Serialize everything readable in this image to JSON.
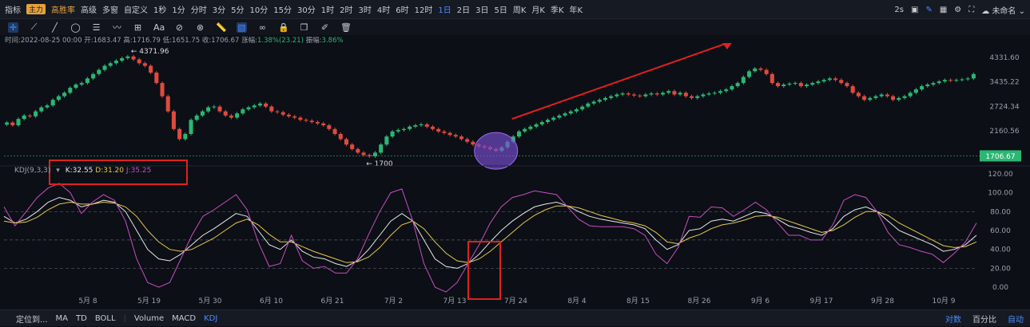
{
  "topbar": {
    "items": [
      "指标",
      "主力",
      "高胜率",
      "高级",
      "多窗",
      "自定义",
      "1秒",
      "1分",
      "分时",
      "3分",
      "5分",
      "10分",
      "15分",
      "30分",
      "1时",
      "2时",
      "3时",
      "4时",
      "6时",
      "12时",
      "1日",
      "2日",
      "3日",
      "5日",
      "周K",
      "月K",
      "季K",
      "年K"
    ],
    "active": "1日",
    "right_label": "2s",
    "account": "未命名"
  },
  "ohlc": {
    "time_label": "时间:",
    "time": "2022-08-25 00:00",
    "open_label": "开:",
    "open": "1683.47",
    "high_label": "高:",
    "high": "1716.79",
    "low_label": "低:",
    "low": "1651.75",
    "close_label": "收:",
    "close": "1706.67",
    "change_label": "涨幅:",
    "change": "1.38%(23.21)",
    "amp_label": "振幅:",
    "amp": "3.86%"
  },
  "kdj_legend": {
    "name": "KDJ(9,3,3)",
    "k": "K:32.55",
    "d": "D:31.20",
    "j": "J:35.25"
  },
  "bottombar": {
    "locate": "定位到...",
    "items": [
      "MA",
      "TD",
      "BOLL",
      "Volume",
      "MACD",
      "KDJ"
    ],
    "active": "KDJ",
    "right": [
      "对数",
      "百分比",
      "自动"
    ]
  },
  "colors": {
    "up": "#2bb673",
    "down": "#e04a3e",
    "k": "#e8e8e8",
    "d": "#e6c84a",
    "j": "#c64fbf",
    "accent": "#4a8cff",
    "annotation": "#e02020",
    "highlight": "#7a4fd6"
  },
  "chart_data": [
    {
      "type": "candlestick",
      "y_ticks": [
        4331.6,
        3435.22,
        2724.34,
        2160.56
      ],
      "y_scale": "log",
      "ylim": [
        1600,
        4600
      ],
      "current_price": "1706.67",
      "annotations": [
        "4371.96",
        "1700"
      ],
      "x_ticks": [
        "5月 8",
        "5月 19",
        "5月 30",
        "6月 10",
        "6月 21",
        "7月 2",
        "7月 13",
        "7月 24",
        "8月 4",
        "8月 15",
        "8月 26",
        "9月 6",
        "9月 17",
        "9月 28",
        "10月 9"
      ],
      "close": [
        2340,
        2280,
        2420,
        2500,
        2480,
        2600,
        2700,
        2750,
        2900,
        3000,
        3100,
        3250,
        3350,
        3400,
        3550,
        3700,
        3850,
        4000,
        4100,
        4200,
        4300,
        4371,
        4250,
        4100,
        4000,
        3750,
        3400,
        3000,
        2600,
        2200,
        2000,
        2100,
        2400,
        2500,
        2600,
        2700,
        2720,
        2600,
        2500,
        2450,
        2550,
        2650,
        2700,
        2750,
        2800,
        2720,
        2600,
        2580,
        2520,
        2480,
        2450,
        2400,
        2380,
        2350,
        2320,
        2280,
        2200,
        2100,
        2000,
        1900,
        1820,
        1760,
        1720,
        1700,
        1760,
        1900,
        2050,
        2150,
        2180,
        2200,
        2250,
        2280,
        2300,
        2250,
        2200,
        2150,
        2120,
        2080,
        2050,
        2000,
        1950,
        1900,
        1870,
        1850,
        1820,
        1790,
        1850,
        1950,
        2050,
        2150,
        2200,
        2250,
        2300,
        2350,
        2400,
        2450,
        2500,
        2550,
        2600,
        2650,
        2720,
        2800,
        2850,
        2900,
        2950,
        3000,
        3050,
        3080,
        3050,
        3020,
        3000,
        3050,
        3080,
        3050,
        3100,
        3150,
        3050,
        3100,
        3000,
        2950,
        3000,
        3050,
        3080,
        3100,
        3150,
        3200,
        3300,
        3400,
        3600,
        3800,
        3900,
        3850,
        3700,
        3400,
        3300,
        3350,
        3380,
        3400,
        3300,
        3350,
        3400,
        3450,
        3500,
        3550,
        3500,
        3400,
        3300,
        3100,
        3000,
        2900,
        2950,
        3000,
        3050,
        3000,
        2900,
        2950,
        3000,
        3100,
        3200,
        3300,
        3350,
        3400,
        3450,
        3500,
        3480,
        3500,
        3520,
        3550,
        3700
      ]
    },
    {
      "type": "line",
      "title": "KDJ(9,3,3)",
      "y_ticks": [
        120,
        100,
        80,
        60,
        40,
        20,
        0
      ],
      "ylim": [
        -10,
        125
      ],
      "dashed_levels": [
        80,
        50,
        20
      ],
      "series": [
        {
          "name": "K",
          "values": [
            75,
            68,
            72,
            80,
            90,
            95,
            92,
            85,
            88,
            92,
            90,
            80,
            60,
            40,
            30,
            28,
            35,
            45,
            55,
            62,
            70,
            78,
            75,
            60,
            45,
            40,
            50,
            38,
            32,
            30,
            25,
            22,
            28,
            40,
            55,
            70,
            78,
            70,
            50,
            30,
            22,
            20,
            25,
            35,
            48,
            60,
            70,
            78,
            85,
            88,
            90,
            86,
            80,
            75,
            72,
            70,
            68,
            66,
            62,
            50,
            40,
            45,
            60,
            62,
            70,
            72,
            70,
            75,
            80,
            78,
            72,
            65,
            62,
            58,
            55,
            62,
            75,
            82,
            85,
            80,
            70,
            60,
            55,
            50,
            45,
            38,
            40,
            45,
            55
          ]
        },
        {
          "name": "D",
          "values": [
            70,
            68,
            69,
            74,
            82,
            88,
            90,
            88,
            88,
            90,
            89,
            85,
            75,
            60,
            48,
            40,
            38,
            40,
            46,
            52,
            60,
            68,
            72,
            66,
            56,
            48,
            48,
            43,
            38,
            34,
            30,
            26,
            27,
            32,
            42,
            55,
            66,
            70,
            62,
            48,
            36,
            28,
            26,
            30,
            38,
            48,
            58,
            68,
            76,
            82,
            86,
            86,
            84,
            80,
            76,
            73,
            70,
            68,
            65,
            58,
            48,
            46,
            52,
            56,
            62,
            66,
            68,
            71,
            75,
            76,
            74,
            70,
            66,
            62,
            58,
            60,
            66,
            74,
            80,
            80,
            76,
            68,
            62,
            56,
            50,
            44,
            42,
            43,
            48
          ]
        },
        {
          "name": "J",
          "values": [
            85,
            65,
            80,
            95,
            105,
            110,
            100,
            78,
            90,
            98,
            92,
            70,
            30,
            5,
            0,
            5,
            30,
            55,
            75,
            82,
            90,
            98,
            82,
            48,
            22,
            25,
            55,
            28,
            20,
            22,
            15,
            15,
            30,
            56,
            80,
            100,
            104,
            70,
            25,
            0,
            -5,
            5,
            25,
            45,
            68,
            85,
            95,
            98,
            102,
            100,
            98,
            85,
            72,
            65,
            64,
            64,
            64,
            62,
            55,
            35,
            25,
            42,
            75,
            74,
            85,
            84,
            75,
            82,
            90,
            82,
            68,
            55,
            55,
            50,
            50,
            66,
            92,
            98,
            95,
            80,
            58,
            45,
            42,
            38,
            35,
            26,
            36,
            48,
            68
          ]
        }
      ]
    }
  ]
}
